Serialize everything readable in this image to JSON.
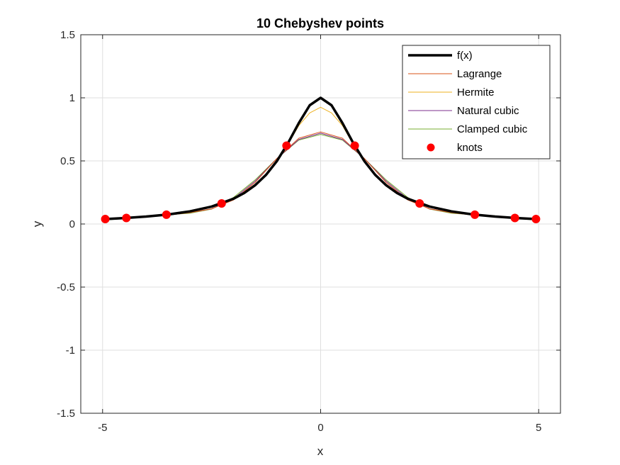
{
  "chart_data": {
    "type": "line",
    "title": "10 Chebyshev points",
    "xlabel": "x",
    "ylabel": "y",
    "xlim": [
      -5.5,
      5.5
    ],
    "ylim": [
      -1.5,
      1.5
    ],
    "xticks": [
      -5,
      0,
      5
    ],
    "yticks": [
      -1.5,
      -1,
      -0.5,
      0,
      0.5,
      1,
      1.5
    ],
    "xtick_labels": [
      "-5",
      "0",
      "5"
    ],
    "ytick_labels": [
      "-1.5",
      "-1",
      "-0.5",
      "0",
      "0.5",
      "1",
      "1.5"
    ],
    "grid": true,
    "legend_position": "top-right",
    "series": [
      {
        "name": "f(x)",
        "color": "#000000",
        "x": [
          -5,
          -4.5,
          -4,
          -3.5,
          -3,
          -2.5,
          -2,
          -1.75,
          -1.5,
          -1.25,
          -1,
          -0.75,
          -0.5,
          -0.25,
          0,
          0.25,
          0.5,
          0.75,
          1,
          1.25,
          1.5,
          1.75,
          2,
          2.5,
          3,
          3.5,
          4,
          4.5,
          5
        ],
        "y": [
          0.038,
          0.047,
          0.059,
          0.075,
          0.1,
          0.138,
          0.2,
          0.246,
          0.308,
          0.39,
          0.5,
          0.64,
          0.8,
          0.941,
          1,
          0.941,
          0.8,
          0.64,
          0.5,
          0.39,
          0.308,
          0.246,
          0.2,
          0.138,
          0.1,
          0.075,
          0.059,
          0.047,
          0.038
        ]
      },
      {
        "name": "Lagrange",
        "color": "#d95319",
        "x": [
          -5,
          -4.5,
          -4,
          -3.5,
          -3,
          -2.5,
          -2,
          -1.5,
          -1,
          -0.5,
          0,
          0.5,
          1,
          1.5,
          2,
          2.5,
          3,
          3.5,
          4,
          4.5,
          5
        ],
        "y": [
          0.04,
          0.045,
          0.06,
          0.07,
          0.09,
          0.12,
          0.19,
          0.33,
          0.52,
          0.68,
          0.73,
          0.68,
          0.52,
          0.33,
          0.19,
          0.12,
          0.09,
          0.07,
          0.06,
          0.045,
          0.04
        ]
      },
      {
        "name": "Hermite",
        "color": "#edb120",
        "x": [
          -5,
          -4.5,
          -4,
          -3.5,
          -3,
          -2.5,
          -2,
          -1.75,
          -1.5,
          -1.25,
          -1,
          -0.75,
          -0.5,
          -0.25,
          0,
          0.25,
          0.5,
          0.75,
          1,
          1.25,
          1.5,
          1.75,
          2,
          2.5,
          3,
          3.5,
          4,
          4.5,
          5
        ],
        "y": [
          0.038,
          0.046,
          0.058,
          0.074,
          0.098,
          0.135,
          0.195,
          0.24,
          0.3,
          0.385,
          0.495,
          0.63,
          0.78,
          0.88,
          0.925,
          0.88,
          0.78,
          0.63,
          0.495,
          0.385,
          0.3,
          0.24,
          0.195,
          0.135,
          0.098,
          0.074,
          0.058,
          0.046,
          0.038
        ]
      },
      {
        "name": "Natural cubic",
        "color": "#7e2f8e",
        "x": [
          -5,
          -4.5,
          -4,
          -3.5,
          -3,
          -2.5,
          -2,
          -1.5,
          -1,
          -0.5,
          0,
          0.5,
          1,
          1.5,
          2,
          2.5,
          3,
          3.5,
          4,
          4.5,
          5
        ],
        "y": [
          0.035,
          0.045,
          0.062,
          0.072,
          0.09,
          0.12,
          0.2,
          0.34,
          0.52,
          0.67,
          0.72,
          0.67,
          0.52,
          0.34,
          0.2,
          0.12,
          0.09,
          0.072,
          0.062,
          0.045,
          0.035
        ]
      },
      {
        "name": "Clamped cubic",
        "color": "#77ac30",
        "x": [
          -5,
          -4.5,
          -4,
          -3.5,
          -3,
          -2.5,
          -2,
          -1.5,
          -1,
          -0.5,
          0,
          0.5,
          1,
          1.5,
          2,
          2.5,
          3,
          3.5,
          4,
          4.5,
          5
        ],
        "y": [
          0.03,
          0.043,
          0.065,
          0.074,
          0.085,
          0.118,
          0.21,
          0.35,
          0.52,
          0.665,
          0.71,
          0.665,
          0.52,
          0.35,
          0.21,
          0.118,
          0.085,
          0.074,
          0.065,
          0.043,
          0.03
        ]
      }
    ],
    "knots": {
      "name": "knots",
      "color": "#ff0000",
      "x": [
        -4.938,
        -4.455,
        -3.536,
        -2.27,
        -0.782,
        0.782,
        2.27,
        3.536,
        4.455,
        4.938
      ],
      "y": [
        0.039,
        0.048,
        0.074,
        0.163,
        0.621,
        0.621,
        0.163,
        0.074,
        0.048,
        0.039
      ]
    }
  }
}
